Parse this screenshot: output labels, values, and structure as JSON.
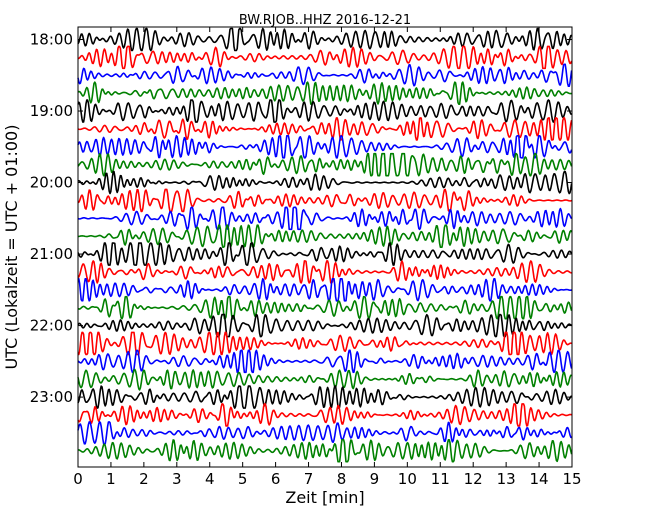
{
  "chart_data": {
    "type": "line",
    "title": "BW.RJOB..HHZ 2016-12-21",
    "xlabel": "Zeit  [min]",
    "ylabel": "UTC (Lokalzeit = UTC + 01:00)",
    "xlim": [
      0,
      15
    ],
    "x_ticks": [
      "0",
      "1",
      "2",
      "3",
      "4",
      "5",
      "6",
      "7",
      "8",
      "9",
      "10",
      "11",
      "12",
      "13",
      "14",
      "15"
    ],
    "y_ticks": [
      "18:00",
      "19:00",
      "20:00",
      "21:00",
      "22:00",
      "23:00"
    ],
    "trace_start": "18:00",
    "trace_interval_min": 15,
    "trace_count": 24,
    "trace_colors": [
      "#000000",
      "#ff0000",
      "#0000ff",
      "#008000"
    ],
    "grid": false
  }
}
